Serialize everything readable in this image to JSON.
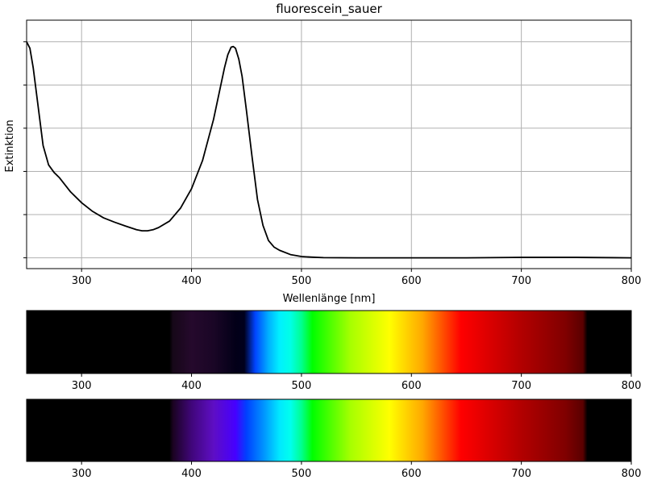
{
  "chart_data": [
    {
      "type": "line",
      "title": "fluorescein_sauer",
      "xlabel": "Wellenlänge [nm]",
      "ylabel": "Extinktion",
      "xlim": [
        250,
        800
      ],
      "ylim": [
        -0.05,
        1.1
      ],
      "x_ticks": [
        300,
        400,
        500,
        600,
        700,
        800
      ],
      "y_ticks": [
        0,
        0.2,
        0.4,
        0.6,
        0.8,
        1.0
      ],
      "y_tick_labels_visible": false,
      "grid": true,
      "series": [
        {
          "color": "#000000",
          "x": [
            250,
            253,
            256,
            260,
            265,
            270,
            275,
            280,
            290,
            300,
            310,
            320,
            330,
            340,
            350,
            355,
            360,
            365,
            370,
            380,
            390,
            400,
            410,
            420,
            425,
            430,
            433,
            436,
            438,
            440,
            443,
            446,
            450,
            455,
            460,
            465,
            470,
            475,
            480,
            490,
            500,
            510,
            520,
            550,
            600,
            650,
            700,
            750,
            800
          ],
          "y": [
            1.0,
            0.97,
            0.88,
            0.72,
            0.52,
            0.43,
            0.395,
            0.37,
            0.305,
            0.255,
            0.215,
            0.185,
            0.165,
            0.147,
            0.13,
            0.125,
            0.125,
            0.13,
            0.14,
            0.17,
            0.23,
            0.32,
            0.45,
            0.64,
            0.76,
            0.88,
            0.94,
            0.975,
            0.978,
            0.97,
            0.92,
            0.84,
            0.68,
            0.47,
            0.27,
            0.15,
            0.08,
            0.05,
            0.035,
            0.015,
            0.006,
            0.003,
            0.001,
            0.0,
            0.0,
            0.0,
            0.002,
            0.002,
            0.0
          ]
        }
      ]
    },
    {
      "type": "heatmap",
      "name": "transmitted-spectrum",
      "xlim": [
        250,
        800
      ],
      "x_ticks": [
        300,
        400,
        500,
        600,
        700,
        800
      ],
      "stops": [
        {
          "x": 250,
          "color": "#000000"
        },
        {
          "x": 380,
          "color": "#000000"
        },
        {
          "x": 383,
          "color": "#160818"
        },
        {
          "x": 400,
          "color": "#25092c"
        },
        {
          "x": 420,
          "color": "#1a0626"
        },
        {
          "x": 440,
          "color": "#030018"
        },
        {
          "x": 448,
          "color": "#00001c"
        },
        {
          "x": 458,
          "color": "#0044ff"
        },
        {
          "x": 470,
          "color": "#00b0ff"
        },
        {
          "x": 480,
          "color": "#00f0ff"
        },
        {
          "x": 490,
          "color": "#00ffe6"
        },
        {
          "x": 500,
          "color": "#00ff90"
        },
        {
          "x": 510,
          "color": "#00ff00"
        },
        {
          "x": 545,
          "color": "#a8ff00"
        },
        {
          "x": 580,
          "color": "#ffff00"
        },
        {
          "x": 610,
          "color": "#ffa800"
        },
        {
          "x": 645,
          "color": "#ff0000"
        },
        {
          "x": 700,
          "color": "#b20000"
        },
        {
          "x": 740,
          "color": "#800000"
        },
        {
          "x": 756,
          "color": "#5a0000"
        },
        {
          "x": 760,
          "color": "#000000"
        },
        {
          "x": 800,
          "color": "#000000"
        }
      ]
    },
    {
      "type": "heatmap",
      "name": "reference-spectrum",
      "xlim": [
        250,
        800
      ],
      "x_ticks": [
        300,
        400,
        500,
        600,
        700,
        800
      ],
      "stops": [
        {
          "x": 250,
          "color": "#000000"
        },
        {
          "x": 380,
          "color": "#000000"
        },
        {
          "x": 383,
          "color": "#1a0320"
        },
        {
          "x": 400,
          "color": "#40067a"
        },
        {
          "x": 420,
          "color": "#5e0ec4"
        },
        {
          "x": 440,
          "color": "#4600ff"
        },
        {
          "x": 450,
          "color": "#0040ff"
        },
        {
          "x": 465,
          "color": "#0090ff"
        },
        {
          "x": 480,
          "color": "#00e8ff"
        },
        {
          "x": 490,
          "color": "#00ffee"
        },
        {
          "x": 500,
          "color": "#00ff90"
        },
        {
          "x": 510,
          "color": "#00ff00"
        },
        {
          "x": 545,
          "color": "#a8ff00"
        },
        {
          "x": 580,
          "color": "#ffff00"
        },
        {
          "x": 610,
          "color": "#ffa800"
        },
        {
          "x": 645,
          "color": "#ff0000"
        },
        {
          "x": 700,
          "color": "#b20000"
        },
        {
          "x": 740,
          "color": "#800000"
        },
        {
          "x": 756,
          "color": "#5a0000"
        },
        {
          "x": 760,
          "color": "#000000"
        },
        {
          "x": 800,
          "color": "#000000"
        }
      ]
    }
  ]
}
